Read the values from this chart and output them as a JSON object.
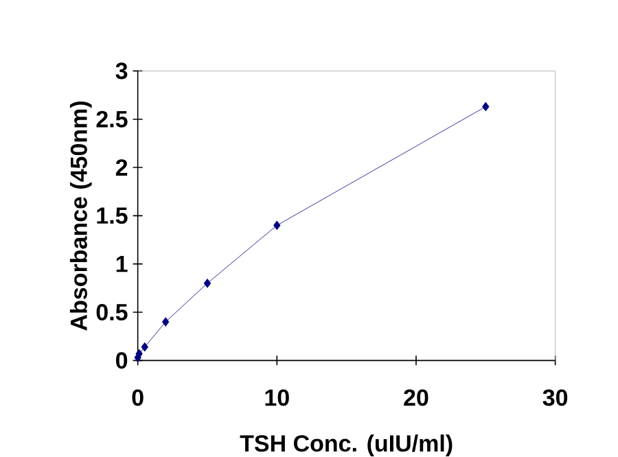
{
  "chart_data": {
    "type": "line",
    "xlabel": "TSH Conc. (uIU/ml)",
    "ylabel": "Absorbance (450nm)",
    "x": [
      0,
      0.1,
      0.5,
      2,
      5,
      10,
      25
    ],
    "series": [
      {
        "color": "#000080",
        "values": [
          0.03,
          0.07,
          0.14,
          0.4,
          0.8,
          1.4,
          2.63
        ]
      }
    ],
    "xlim": [
      0,
      30
    ],
    "xticks": [
      0,
      10,
      20,
      30
    ],
    "ylim": [
      0,
      3
    ],
    "yticks": [
      0,
      0.5,
      1,
      1.5,
      2,
      2.5,
      3
    ],
    "marker": "diamond",
    "line_style": "solid"
  }
}
